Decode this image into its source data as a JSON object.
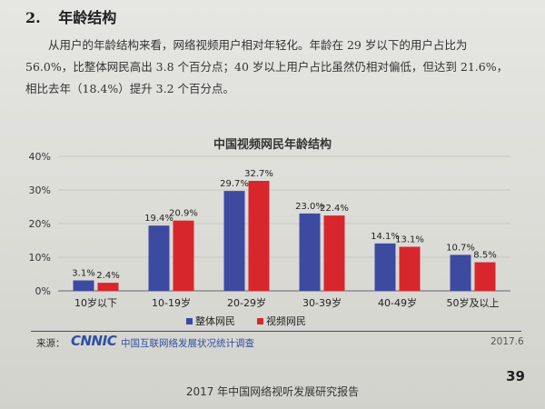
{
  "section": {
    "number": "2.",
    "title": "年龄结构"
  },
  "paragraph": {
    "line1": "从用户的年龄结构来看，网络视频用户相对年轻化。年龄在 29 岁以下的用户占比为",
    "line2": "56.0%，比整体网民高出 3.8 个百分点；40 岁以上用户占比虽然仍相对偏低，但达到 21.6%，",
    "line3": "相比去年（18.4%）提升 3.2 个百分点。"
  },
  "chart_data": {
    "type": "bar",
    "title": "中国视频网民年龄结构",
    "categories": [
      "10岁以下",
      "10-19岁",
      "20-29岁",
      "30-39岁",
      "40-49岁",
      "50岁及以上"
    ],
    "series": [
      {
        "name": "整体网民",
        "values": [
          3.1,
          19.4,
          29.7,
          23.0,
          14.1,
          10.7
        ],
        "labels": [
          "3.1%",
          "19.4%",
          "29.7%",
          "23.0%",
          "14.1%",
          "10.7%"
        ],
        "color": "#3c4aa0"
      },
      {
        "name": "视频网民",
        "values": [
          2.4,
          20.9,
          32.7,
          22.4,
          13.1,
          8.5
        ],
        "labels": [
          "2.4%",
          "20.9%",
          "32.7%",
          "22.4%",
          "13.1%",
          "8.5%"
        ],
        "color": "#d8262d"
      }
    ],
    "y_ticks": [
      "0%",
      "10%",
      "20%",
      "30%",
      "40%"
    ],
    "ylim": [
      0,
      40
    ],
    "legend_position": "bottom"
  },
  "source": {
    "label": "来源：",
    "logo": "CNNIC",
    "name": "中国互联网络发展状况统计调查",
    "date": "2017.6"
  },
  "page_number": "39",
  "footer": "2017 年中国网络视听发展研究报告"
}
